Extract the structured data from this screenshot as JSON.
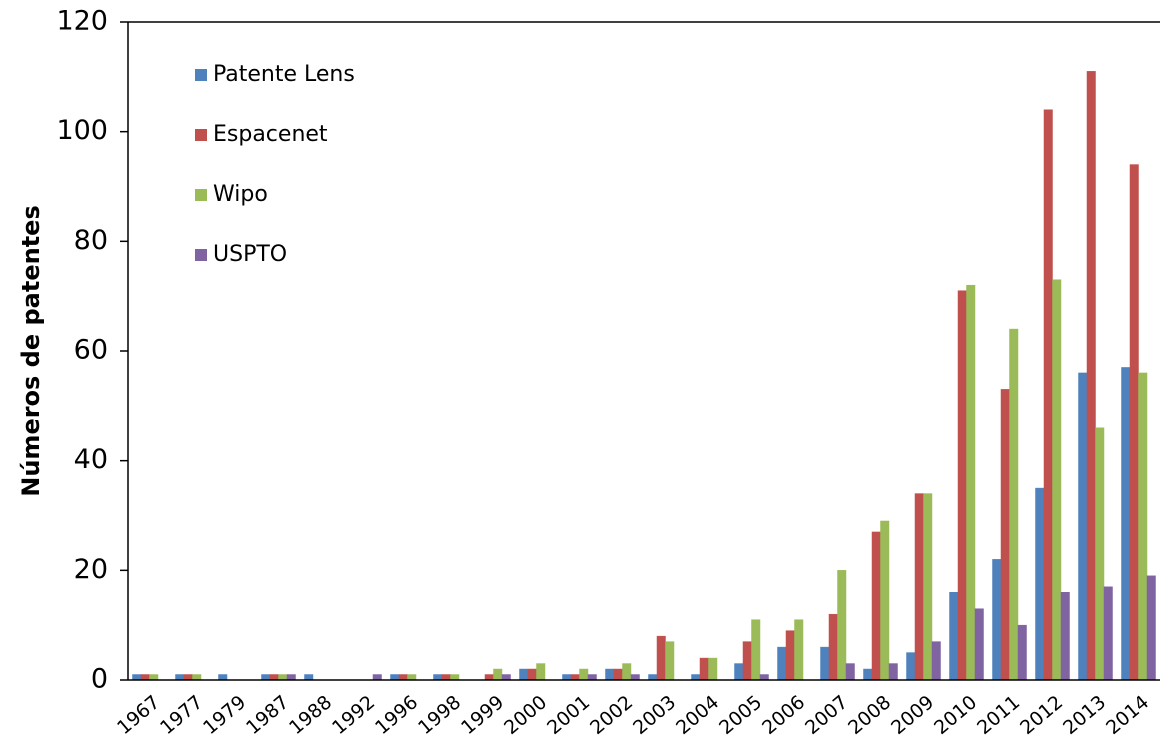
{
  "chart_data": {
    "type": "bar",
    "y_label": "Números de patentes",
    "categories": [
      "1967",
      "1977",
      "1979",
      "1987",
      "1988",
      "1992",
      "1996",
      "1998",
      "1999",
      "2000",
      "2001",
      "2002",
      "2003",
      "2004",
      "2005",
      "2006",
      "2007",
      "2008",
      "2009",
      "2010",
      "2011",
      "2012",
      "2013",
      "2014"
    ],
    "series": [
      {
        "name": "Patente Lens",
        "color": "#4f81bd",
        "values": [
          1,
          1,
          1,
          1,
          1,
          0,
          1,
          1,
          0,
          2,
          1,
          2,
          1,
          1,
          3,
          6,
          6,
          2,
          5,
          16,
          22,
          35,
          56,
          57
        ]
      },
      {
        "name": "Espacenet",
        "color": "#c0504d",
        "values": [
          1,
          1,
          0,
          1,
          0,
          0,
          1,
          1,
          1,
          2,
          1,
          2,
          8,
          4,
          7,
          9,
          12,
          27,
          34,
          71,
          53,
          104,
          111,
          94
        ]
      },
      {
        "name": "Wipo",
        "color": "#9bbb59",
        "values": [
          1,
          1,
          0,
          1,
          0,
          0,
          1,
          1,
          2,
          3,
          2,
          3,
          7,
          4,
          11,
          11,
          20,
          29,
          34,
          72,
          64,
          73,
          46,
          56
        ]
      },
      {
        "name": "USPTO",
        "color": "#8064a2",
        "values": [
          0,
          0,
          0,
          1,
          0,
          1,
          0,
          0,
          1,
          0,
          1,
          1,
          0,
          0,
          1,
          0,
          3,
          3,
          7,
          13,
          10,
          16,
          17,
          19
        ]
      }
    ],
    "ylim": [
      0,
      120
    ],
    "yticks": [
      0,
      20,
      40,
      60,
      80,
      100,
      120
    ],
    "legend": "upper-left"
  }
}
